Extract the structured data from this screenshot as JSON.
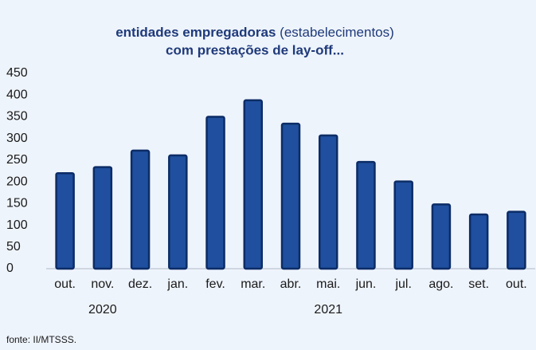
{
  "chart_data": {
    "type": "bar",
    "title_bold": "entidades empregadoras",
    "title_normal": "(estabelecimentos)",
    "title_line2": "com prestações de lay-off...",
    "categories": [
      "out.",
      "nov.",
      "dez.",
      "jan.",
      "fev.",
      "mar.",
      "abr.",
      "mai.",
      "jun.",
      "jul.",
      "ago.",
      "set.",
      "out."
    ],
    "years": [
      "2020",
      "2021"
    ],
    "values": [
      220,
      234,
      272,
      261,
      350,
      388,
      334,
      307,
      246,
      201,
      148,
      125,
      131
    ],
    "color": "#1f4f9e",
    "ylim": [
      0,
      450
    ],
    "yticks": [
      0,
      50,
      100,
      150,
      200,
      250,
      300,
      350,
      400,
      450
    ],
    "grid": false,
    "source": "fonte: II/MTSSS."
  }
}
